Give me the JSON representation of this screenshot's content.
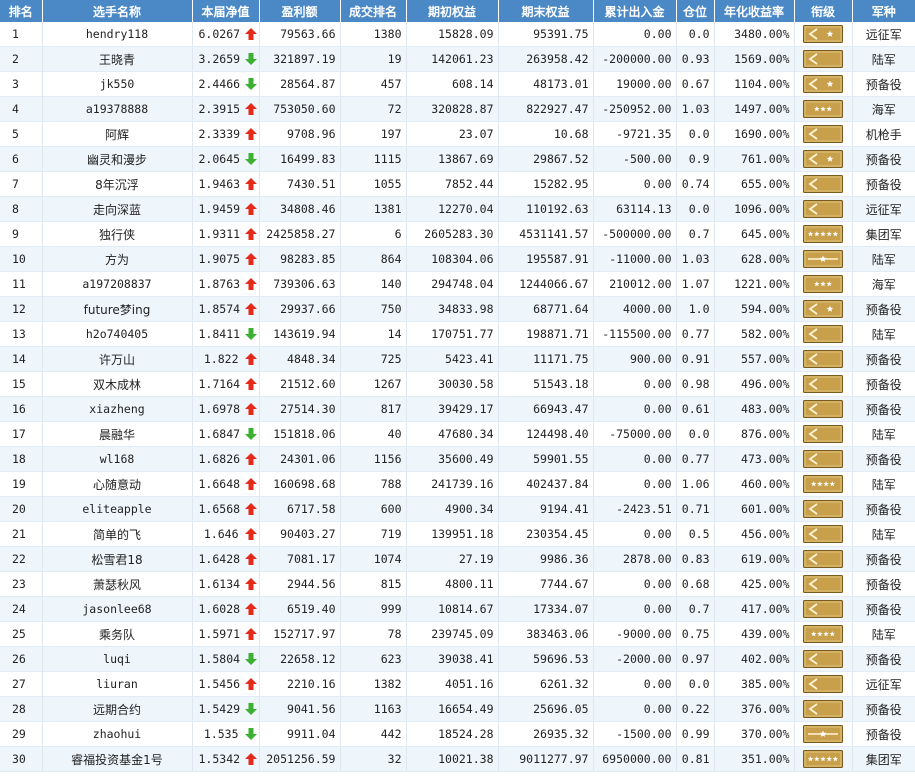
{
  "columns": [
    "排名",
    "选手名称",
    "本届净值",
    "盈利额",
    "成交排名",
    "期初权益",
    "期末权益",
    "累计出入金",
    "仓位",
    "年化收益率",
    "衔级",
    "军种"
  ],
  "colors": {
    "header": "#4b89c6",
    "up": "#e52a1a",
    "down": "#3cb030",
    "badge_bg": "#c8a04c",
    "badge_border": "#7a5a20"
  },
  "rows": [
    {
      "rank": "1",
      "name": "hendry118",
      "nav": "6.0267",
      "dir": "up",
      "profit": "79563.66",
      "trade_rank": "1380",
      "start": "15828.09",
      "end": "95391.75",
      "flow": "0.00",
      "position": "0.0",
      "annual": "3480.00%",
      "insignia": "chevron-one-star",
      "army": "远征军"
    },
    {
      "rank": "2",
      "name": "王晓青",
      "nav": "3.2659",
      "dir": "down",
      "profit": "321897.19",
      "trade_rank": "19",
      "start": "142061.23",
      "end": "263958.42",
      "flow": "-200000.00",
      "position": "0.93",
      "annual": "1569.00%",
      "insignia": "chevron-plain",
      "army": "陆军"
    },
    {
      "rank": "3",
      "name": "jk550",
      "nav": "2.4466",
      "dir": "down",
      "profit": "28564.87",
      "trade_rank": "457",
      "start": "608.14",
      "end": "48173.01",
      "flow": "19000.00",
      "position": "0.67",
      "annual": "1104.00%",
      "insignia": "chevron-one-star",
      "army": "预备役"
    },
    {
      "rank": "4",
      "name": "a19378888",
      "nav": "2.3915",
      "dir": "up",
      "profit": "753050.60",
      "trade_rank": "72",
      "start": "320828.87",
      "end": "822927.47",
      "flow": "-250952.00",
      "position": "1.03",
      "annual": "1497.00%",
      "insignia": "stars-3",
      "army": "海军"
    },
    {
      "rank": "5",
      "name": "阿辉",
      "nav": "2.3339",
      "dir": "up",
      "profit": "9708.96",
      "trade_rank": "197",
      "start": "23.07",
      "end": "10.68",
      "flow": "-9721.35",
      "position": "0.0",
      "annual": "1690.00%",
      "insignia": "chevron-plain",
      "army": "机枪手"
    },
    {
      "rank": "6",
      "name": "幽灵和漫步",
      "nav": "2.0645",
      "dir": "down",
      "profit": "16499.83",
      "trade_rank": "1115",
      "start": "13867.69",
      "end": "29867.52",
      "flow": "-500.00",
      "position": "0.9",
      "annual": "761.00%",
      "insignia": "chevron-one-star",
      "army": "预备役"
    },
    {
      "rank": "7",
      "name": "8年沉浮",
      "nav": "1.9463",
      "dir": "up",
      "profit": "7430.51",
      "trade_rank": "1055",
      "start": "7852.44",
      "end": "15282.95",
      "flow": "0.00",
      "position": "0.74",
      "annual": "655.00%",
      "insignia": "chevron-plain",
      "army": "预备役"
    },
    {
      "rank": "8",
      "name": "走向深蓝",
      "nav": "1.9459",
      "dir": "up",
      "profit": "34808.46",
      "trade_rank": "1381",
      "start": "12270.04",
      "end": "110192.63",
      "flow": "63114.13",
      "position": "0.0",
      "annual": "1096.00%",
      "insignia": "chevron-plain",
      "army": "远征军"
    },
    {
      "rank": "9",
      "name": "独行侠",
      "nav": "1.9311",
      "dir": "up",
      "profit": "2425858.27",
      "trade_rank": "6",
      "start": "2605283.30",
      "end": "4531141.57",
      "flow": "-500000.00",
      "position": "0.7",
      "annual": "645.00%",
      "insignia": "stars-5",
      "army": "集团军"
    },
    {
      "rank": "10",
      "name": "方为",
      "nav": "1.9075",
      "dir": "up",
      "profit": "98283.85",
      "trade_rank": "864",
      "start": "108304.06",
      "end": "195587.91",
      "flow": "-11000.00",
      "position": "1.03",
      "annual": "628.00%",
      "insignia": "bar-one-star",
      "army": "陆军"
    },
    {
      "rank": "11",
      "name": "a197208837",
      "nav": "1.8763",
      "dir": "up",
      "profit": "739306.63",
      "trade_rank": "140",
      "start": "294748.04",
      "end": "1244066.67",
      "flow": "210012.00",
      "position": "1.07",
      "annual": "1221.00%",
      "insignia": "stars-3",
      "army": "海军"
    },
    {
      "rank": "12",
      "name": "future梦ing",
      "nav": "1.8574",
      "dir": "up",
      "profit": "29937.66",
      "trade_rank": "750",
      "start": "34833.98",
      "end": "68771.64",
      "flow": "4000.00",
      "position": "1.0",
      "annual": "594.00%",
      "insignia": "chevron-one-star",
      "army": "预备役"
    },
    {
      "rank": "13",
      "name": "h2o740405",
      "nav": "1.8411",
      "dir": "down",
      "profit": "143619.94",
      "trade_rank": "14",
      "start": "170751.77",
      "end": "198871.71",
      "flow": "-115500.00",
      "position": "0.77",
      "annual": "582.00%",
      "insignia": "chevron-plain",
      "army": "陆军"
    },
    {
      "rank": "14",
      "name": "许万山",
      "nav": "1.822",
      "dir": "up",
      "profit": "4848.34",
      "trade_rank": "725",
      "start": "5423.41",
      "end": "11171.75",
      "flow": "900.00",
      "position": "0.91",
      "annual": "557.00%",
      "insignia": "chevron-plain",
      "army": "预备役"
    },
    {
      "rank": "15",
      "name": "双木成林",
      "nav": "1.7164",
      "dir": "up",
      "profit": "21512.60",
      "trade_rank": "1267",
      "start": "30030.58",
      "end": "51543.18",
      "flow": "0.00",
      "position": "0.98",
      "annual": "496.00%",
      "insignia": "chevron-plain",
      "army": "预备役"
    },
    {
      "rank": "16",
      "name": "xiazheng",
      "nav": "1.6978",
      "dir": "up",
      "profit": "27514.30",
      "trade_rank": "817",
      "start": "39429.17",
      "end": "66943.47",
      "flow": "0.00",
      "position": "0.61",
      "annual": "483.00%",
      "insignia": "chevron-plain",
      "army": "预备役"
    },
    {
      "rank": "17",
      "name": "晨融华",
      "nav": "1.6847",
      "dir": "down",
      "profit": "151818.06",
      "trade_rank": "40",
      "start": "47680.34",
      "end": "124498.40",
      "flow": "-75000.00",
      "position": "0.0",
      "annual": "876.00%",
      "insignia": "chevron-plain",
      "army": "陆军"
    },
    {
      "rank": "18",
      "name": "wl168",
      "nav": "1.6826",
      "dir": "up",
      "profit": "24301.06",
      "trade_rank": "1156",
      "start": "35600.49",
      "end": "59901.55",
      "flow": "0.00",
      "position": "0.77",
      "annual": "473.00%",
      "insignia": "chevron-plain",
      "army": "预备役"
    },
    {
      "rank": "19",
      "name": "心随意动",
      "nav": "1.6648",
      "dir": "up",
      "profit": "160698.68",
      "trade_rank": "788",
      "start": "241739.16",
      "end": "402437.84",
      "flow": "0.00",
      "position": "1.06",
      "annual": "460.00%",
      "insignia": "stars-4",
      "army": "陆军"
    },
    {
      "rank": "20",
      "name": "eliteapple",
      "nav": "1.6568",
      "dir": "up",
      "profit": "6717.58",
      "trade_rank": "600",
      "start": "4900.34",
      "end": "9194.41",
      "flow": "-2423.51",
      "position": "0.71",
      "annual": "601.00%",
      "insignia": "chevron-plain",
      "army": "预备役"
    },
    {
      "rank": "21",
      "name": "简单的飞",
      "nav": "1.646",
      "dir": "up",
      "profit": "90403.27",
      "trade_rank": "719",
      "start": "139951.18",
      "end": "230354.45",
      "flow": "0.00",
      "position": "0.5",
      "annual": "456.00%",
      "insignia": "chevron-plain",
      "army": "陆军"
    },
    {
      "rank": "22",
      "name": "松雪君18",
      "nav": "1.6428",
      "dir": "up",
      "profit": "7081.17",
      "trade_rank": "1074",
      "start": "27.19",
      "end": "9986.36",
      "flow": "2878.00",
      "position": "0.83",
      "annual": "619.00%",
      "insignia": "chevron-plain",
      "army": "预备役"
    },
    {
      "rank": "23",
      "name": "萧瑟秋风",
      "nav": "1.6134",
      "dir": "up",
      "profit": "2944.56",
      "trade_rank": "815",
      "start": "4800.11",
      "end": "7744.67",
      "flow": "0.00",
      "position": "0.68",
      "annual": "425.00%",
      "insignia": "chevron-plain",
      "army": "预备役"
    },
    {
      "rank": "24",
      "name": "jasonlee68",
      "nav": "1.6028",
      "dir": "up",
      "profit": "6519.40",
      "trade_rank": "999",
      "start": "10814.67",
      "end": "17334.07",
      "flow": "0.00",
      "position": "0.7",
      "annual": "417.00%",
      "insignia": "chevron-plain",
      "army": "预备役"
    },
    {
      "rank": "25",
      "name": "乘务队",
      "nav": "1.5971",
      "dir": "up",
      "profit": "152717.97",
      "trade_rank": "78",
      "start": "239745.09",
      "end": "383463.06",
      "flow": "-9000.00",
      "position": "0.75",
      "annual": "439.00%",
      "insignia": "stars-4",
      "army": "陆军"
    },
    {
      "rank": "26",
      "name": "luqi",
      "nav": "1.5804",
      "dir": "down",
      "profit": "22658.12",
      "trade_rank": "623",
      "start": "39038.41",
      "end": "59696.53",
      "flow": "-2000.00",
      "position": "0.97",
      "annual": "402.00%",
      "insignia": "chevron-plain",
      "army": "预备役"
    },
    {
      "rank": "27",
      "name": "liuran",
      "nav": "1.5456",
      "dir": "up",
      "profit": "2210.16",
      "trade_rank": "1382",
      "start": "4051.16",
      "end": "6261.32",
      "flow": "0.00",
      "position": "0.0",
      "annual": "385.00%",
      "insignia": "chevron-plain",
      "army": "远征军"
    },
    {
      "rank": "28",
      "name": "远期合约",
      "nav": "1.5429",
      "dir": "down",
      "profit": "9041.56",
      "trade_rank": "1163",
      "start": "16654.49",
      "end": "25696.05",
      "flow": "0.00",
      "position": "0.22",
      "annual": "376.00%",
      "insignia": "chevron-plain",
      "army": "预备役"
    },
    {
      "rank": "29",
      "name": "zhaohui",
      "nav": "1.535",
      "dir": "down",
      "profit": "9911.04",
      "trade_rank": "442",
      "start": "18524.28",
      "end": "26935.32",
      "flow": "-1500.00",
      "position": "0.99",
      "annual": "370.00%",
      "insignia": "bar-one-star",
      "army": "预备役"
    },
    {
      "rank": "30",
      "name": "睿福投资基金1号",
      "nav": "1.5342",
      "dir": "up",
      "profit": "2051256.59",
      "trade_rank": "32",
      "start": "10021.38",
      "end": "9011277.97",
      "flow": "6950000.00",
      "position": "0.81",
      "annual": "351.00%",
      "insignia": "stars-5",
      "army": "集团军"
    }
  ]
}
